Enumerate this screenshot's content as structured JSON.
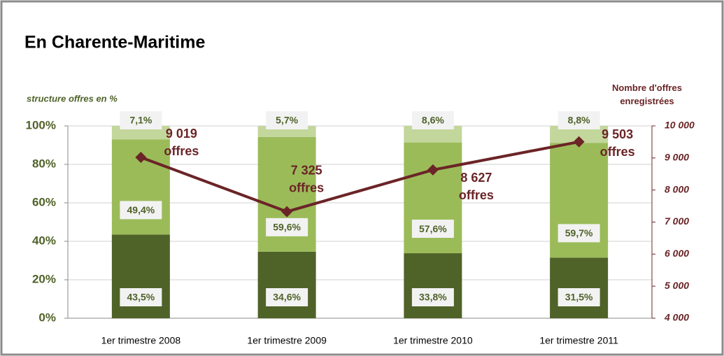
{
  "chart_data": {
    "type": "bar",
    "title": "En Charente-Maritime",
    "ylabel": "structure offres en %",
    "y2label": "Nombre d'offres\nenregistrées",
    "categories": [
      "1er trimestre 2008",
      "1er trimestre 2009",
      "1er trimestre 2010",
      "1er trimestre 2011"
    ],
    "stacked": true,
    "series": [
      {
        "type": "bar",
        "color": "#4f6228",
        "values": [
          43.5,
          34.6,
          33.8,
          31.5
        ],
        "value_labels": [
          "43,5%",
          "34,6%",
          "33,8%",
          "31,5%"
        ]
      },
      {
        "type": "bar",
        "color": "#9bbb59",
        "values": [
          49.4,
          59.6,
          57.6,
          59.7
        ],
        "value_labels": [
          "49,4%",
          "59,6%",
          "57,6%",
          "59,7%"
        ]
      },
      {
        "type": "bar",
        "color": "#c3d69b",
        "values": [
          7.1,
          5.7,
          8.6,
          8.8
        ],
        "value_labels": [
          "7,1%",
          "5,7%",
          "8,6%",
          "8,8%"
        ]
      },
      {
        "type": "line",
        "axis": "y2",
        "color": "#6b2427",
        "values": [
          9019,
          7325,
          8627,
          9503
        ],
        "value_labels": [
          "9 019\noffres",
          "7 325\noffres",
          "8 627\noffres",
          "9 503\noffres"
        ]
      }
    ],
    "ylim": [
      0,
      100
    ],
    "yticks": [
      {
        "value": 0,
        "label": "0%"
      },
      {
        "value": 20,
        "label": "20%"
      },
      {
        "value": 40,
        "label": "40%"
      },
      {
        "value": 60,
        "label": "60%"
      },
      {
        "value": 80,
        "label": "80%"
      },
      {
        "value": 100,
        "label": "100%"
      }
    ],
    "y2lim": [
      4000,
      10000
    ],
    "y2ticks": [
      {
        "value": 4000,
        "label": "4 000"
      },
      {
        "value": 5000,
        "label": "5 000"
      },
      {
        "value": 6000,
        "label": "6 000"
      },
      {
        "value": 7000,
        "label": "7 000"
      },
      {
        "value": 8000,
        "label": "8 000"
      },
      {
        "value": 9000,
        "label": "9 000"
      },
      {
        "value": 10000,
        "label": "10 000"
      }
    ],
    "grid": true
  }
}
